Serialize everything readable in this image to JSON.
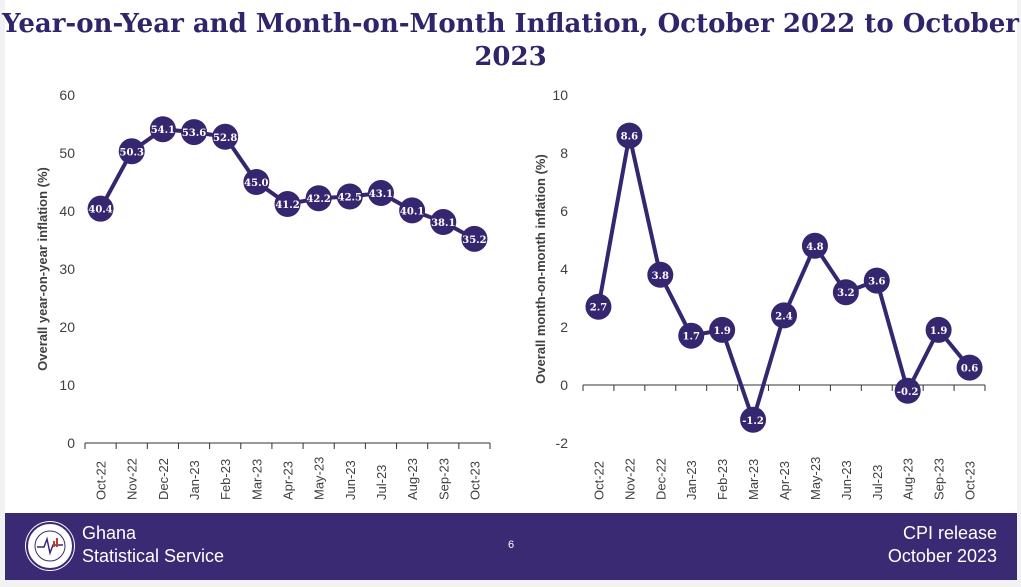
{
  "title": "Year-on-Year and Month-on-Month Inflation, October 2022 to October 2023",
  "chart_data": [
    {
      "type": "line",
      "ylabel": "Overall year-on-year inflation (%)",
      "ylim": [
        0,
        60
      ],
      "yticks": [
        0,
        10,
        20,
        30,
        40,
        50,
        60
      ],
      "categories": [
        "Oct-22",
        "Nov-22",
        "Dec-22",
        "Jan-23",
        "Feb-23",
        "Mar-23",
        "Apr-23",
        "May-23",
        "Jun-23",
        "Jul-23",
        "Aug-23",
        "Sep-23",
        "Oct-23"
      ],
      "values": [
        40.4,
        50.3,
        54.1,
        53.6,
        52.8,
        45.0,
        41.2,
        42.2,
        42.5,
        43.1,
        40.1,
        38.1,
        35.2
      ],
      "color": "#35276f"
    },
    {
      "type": "line",
      "ylabel": "Overall month-on-month inflation (%)",
      "ylim": [
        -2,
        10
      ],
      "yticks": [
        -2,
        0,
        2,
        4,
        6,
        8,
        10
      ],
      "categories": [
        "Oct-22",
        "Nov-22",
        "Dec-22",
        "Jan-23",
        "Feb-23",
        "Mar-23",
        "Apr-23",
        "May-23",
        "Jun-23",
        "Jul-23",
        "Aug-23",
        "Sep-23",
        "Oct-23"
      ],
      "values": [
        2.7,
        8.6,
        3.8,
        1.7,
        1.9,
        -1.2,
        2.4,
        4.8,
        3.2,
        3.6,
        -0.2,
        1.9,
        0.6
      ],
      "color": "#35276f"
    }
  ],
  "footer": {
    "org_line1": "Ghana",
    "org_line2": "Statistical Service",
    "page": "6",
    "release_line1": "CPI release",
    "release_line2": "October  2023",
    "logo_text": "STATISTICAL SERVICE GHANA"
  }
}
